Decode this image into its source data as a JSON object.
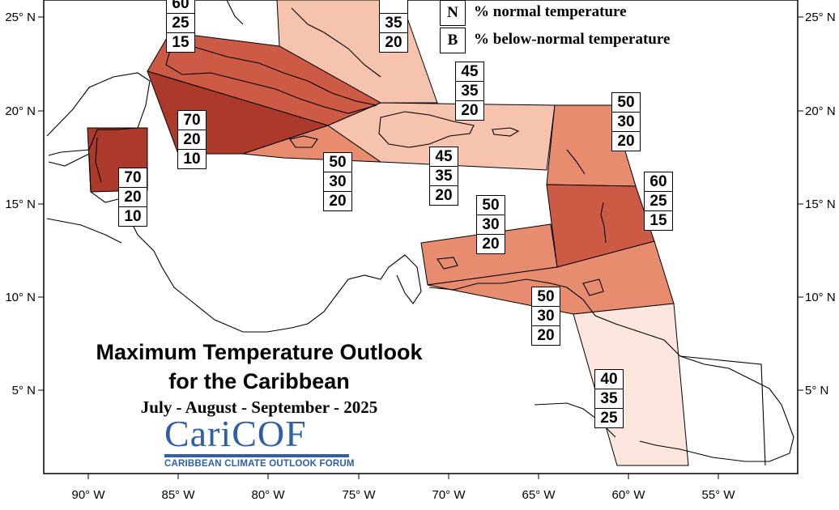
{
  "title_line1": "Maximum Temperature Outlook",
  "title_line2": "for the Caribbean",
  "season": "July - August - September - 2025",
  "logo": {
    "word_a": "Cari",
    "word_b": "COF",
    "subtitle": "CARIBBEAN CLIMATE OUTLOOK FORUM"
  },
  "legend": [
    {
      "key": "N",
      "text": "% normal temperature"
    },
    {
      "key": "B",
      "text": "% below-normal temperature"
    }
  ],
  "lon_ticks": [
    "90° W",
    "85° W",
    "80° W",
    "75° W",
    "70° W",
    "65° W",
    "60° W",
    "55° W"
  ],
  "lat_ticks": [
    "25° N",
    "20° N",
    "15° N",
    "10° N",
    "5° N"
  ],
  "colors": {
    "p70": "#ab3a2a",
    "p60": "#cd5a45",
    "p50": "#e88c70",
    "p45": "#f6c3ae",
    "p40": "#fce6dd"
  },
  "regions": [
    {
      "name": "belize",
      "values": [
        "70",
        "20",
        "10"
      ]
    },
    {
      "name": "cuba-east",
      "values": [
        "60",
        "25",
        "15"
      ]
    },
    {
      "name": "cayman",
      "values": [
        "70",
        "20",
        "10"
      ]
    },
    {
      "name": "bahamas",
      "values": [
        "",
        "35",
        "20"
      ]
    },
    {
      "name": "jamaica",
      "values": [
        "50",
        "30",
        "20"
      ]
    },
    {
      "name": "turks-caicos",
      "values": [
        "45",
        "35",
        "20"
      ]
    },
    {
      "name": "hispaniola",
      "values": [
        "45",
        "35",
        "20"
      ]
    },
    {
      "name": "leeward-north",
      "values": [
        "50",
        "30",
        "20"
      ]
    },
    {
      "name": "windward",
      "values": [
        "60",
        "25",
        "15"
      ]
    },
    {
      "name": "abc-islands",
      "values": [
        "50",
        "30",
        "20"
      ]
    },
    {
      "name": "trinidad",
      "values": [
        "50",
        "30",
        "20"
      ]
    },
    {
      "name": "guianas",
      "values": [
        "40",
        "35",
        "25"
      ]
    }
  ]
}
